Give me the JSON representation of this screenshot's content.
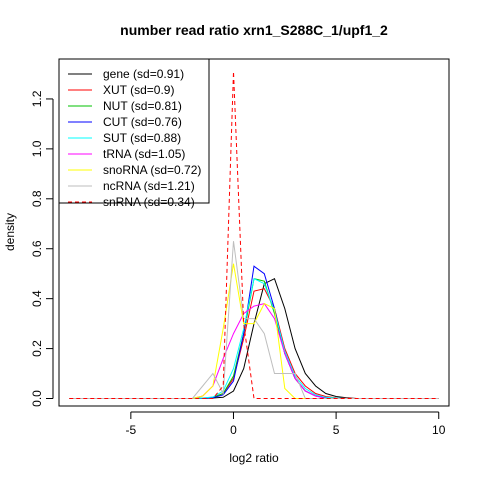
{
  "chart_data": {
    "type": "line",
    "title": "number read ratio xrn1_S288C_1/upf1_2",
    "xlabel": "log2 ratio",
    "ylabel": "density",
    "xlim": [
      -8.5,
      10.5
    ],
    "ylim": [
      -0.03,
      1.36
    ],
    "xticks": [
      -5,
      0,
      5,
      10
    ],
    "xtick_labels": [
      "-5",
      "0",
      "5",
      "10"
    ],
    "yticks": [
      0.0,
      0.2,
      0.4,
      0.6,
      0.8,
      1.0,
      1.2
    ],
    "ytick_labels": [
      "0.0",
      "0.2",
      "0.4",
      "0.6",
      "0.8",
      "1.0",
      "1.2"
    ],
    "grid": false,
    "legend_position": "top-left",
    "series": [
      {
        "name": "gene (sd=0.91)",
        "color": "#000000",
        "dashed": false,
        "x": [
          -8,
          -2,
          -1.5,
          -1,
          -0.5,
          0,
          0.5,
          1,
          1.5,
          2,
          2.5,
          3,
          3.5,
          4,
          4.5,
          5,
          5.5,
          6,
          10
        ],
        "y": [
          0,
          0,
          0,
          0.002,
          0.005,
          0.03,
          0.12,
          0.3,
          0.46,
          0.48,
          0.36,
          0.2,
          0.1,
          0.05,
          0.02,
          0.008,
          0.003,
          0,
          0
        ]
      },
      {
        "name": "XUT (sd=0.9)",
        "color": "#ff0000",
        "dashed": false,
        "x": [
          -8,
          -2,
          -1.5,
          -1,
          -0.5,
          0,
          0.5,
          1,
          1.5,
          2,
          2.5,
          3,
          3.5,
          4,
          4.5,
          5,
          5.5,
          6,
          10
        ],
        "y": [
          0,
          0,
          0.002,
          0.005,
          0.02,
          0.08,
          0.24,
          0.43,
          0.44,
          0.36,
          0.2,
          0.1,
          0.05,
          0.02,
          0.008,
          0.003,
          0.001,
          0,
          0
        ]
      },
      {
        "name": "NUT (sd=0.81)",
        "color": "#00c000",
        "dashed": false,
        "x": [
          -8,
          -2,
          -1.5,
          -1,
          -0.5,
          0,
          0.5,
          1,
          1.5,
          2,
          2.5,
          3,
          3.5,
          4,
          4.5,
          5,
          5.5,
          6,
          10
        ],
        "y": [
          0,
          0,
          0.001,
          0.004,
          0.02,
          0.09,
          0.26,
          0.48,
          0.47,
          0.34,
          0.18,
          0.08,
          0.03,
          0.01,
          0.004,
          0.001,
          0,
          0,
          0
        ]
      },
      {
        "name": "CUT (sd=0.76)",
        "color": "#0000ff",
        "dashed": false,
        "x": [
          -8,
          -2,
          -1.5,
          -1,
          -0.5,
          0,
          0.5,
          1,
          1.5,
          2,
          2.5,
          3,
          3.5,
          4,
          4.5,
          5,
          5.5,
          6,
          10
        ],
        "y": [
          0,
          0,
          0.001,
          0.003,
          0.015,
          0.07,
          0.26,
          0.53,
          0.5,
          0.36,
          0.18,
          0.08,
          0.03,
          0.01,
          0.003,
          0.001,
          0,
          0,
          0
        ]
      },
      {
        "name": "SUT (sd=0.88)",
        "color": "#00ffff",
        "dashed": false,
        "x": [
          -8,
          -2,
          -1.5,
          -1,
          -0.5,
          0,
          0.5,
          1,
          1.5,
          2,
          2.5,
          3,
          3.5,
          4,
          4.5,
          5,
          5.5,
          6,
          10
        ],
        "y": [
          0,
          0,
          0.002,
          0.006,
          0.03,
          0.12,
          0.28,
          0.48,
          0.46,
          0.35,
          0.19,
          0.09,
          0.04,
          0.015,
          0.005,
          0.002,
          0,
          0,
          0
        ]
      },
      {
        "name": "tRNA (sd=1.05)",
        "color": "#ff00ff",
        "dashed": false,
        "x": [
          -8,
          -2,
          -1.5,
          -1,
          -0.5,
          0,
          0.5,
          1,
          1.5,
          2,
          2.5,
          3,
          3.5,
          4,
          4.5,
          5,
          10
        ],
        "y": [
          0,
          0,
          0.01,
          0.05,
          0.16,
          0.26,
          0.34,
          0.37,
          0.38,
          0.32,
          0.18,
          0.08,
          0.03,
          0.01,
          0,
          0,
          0
        ]
      },
      {
        "name": "snoRNA (sd=0.72)",
        "color": "#ffff00",
        "dashed": false,
        "x": [
          -8,
          -2,
          -1.5,
          -1,
          -0.5,
          0,
          0.5,
          1,
          1.5,
          2,
          2.5,
          3,
          3.5,
          4,
          10
        ],
        "y": [
          0,
          0,
          0.01,
          0.05,
          0.28,
          0.54,
          0.3,
          0.3,
          0.38,
          0.36,
          0.04,
          0,
          0,
          0,
          0
        ]
      },
      {
        "name": "ncRNA (sd=1.21)",
        "color": "#bebebe",
        "dashed": false,
        "x": [
          -8,
          -2,
          -1.5,
          -1,
          -0.5,
          0,
          0.5,
          1,
          1.5,
          2,
          2.5,
          3,
          3.5,
          4,
          10
        ],
        "y": [
          0,
          0,
          0.05,
          0.1,
          0.02,
          0.63,
          0.32,
          0.32,
          0.26,
          0.1,
          0.1,
          0.1,
          0,
          0,
          0
        ]
      },
      {
        "name": "snRNA (sd=0.34)",
        "color": "#ff0000",
        "dashed": true,
        "x": [
          -8,
          -1,
          -0.5,
          0,
          0.5,
          1,
          10
        ],
        "y": [
          0,
          0,
          0.05,
          1.31,
          0.3,
          0,
          0
        ]
      }
    ]
  }
}
